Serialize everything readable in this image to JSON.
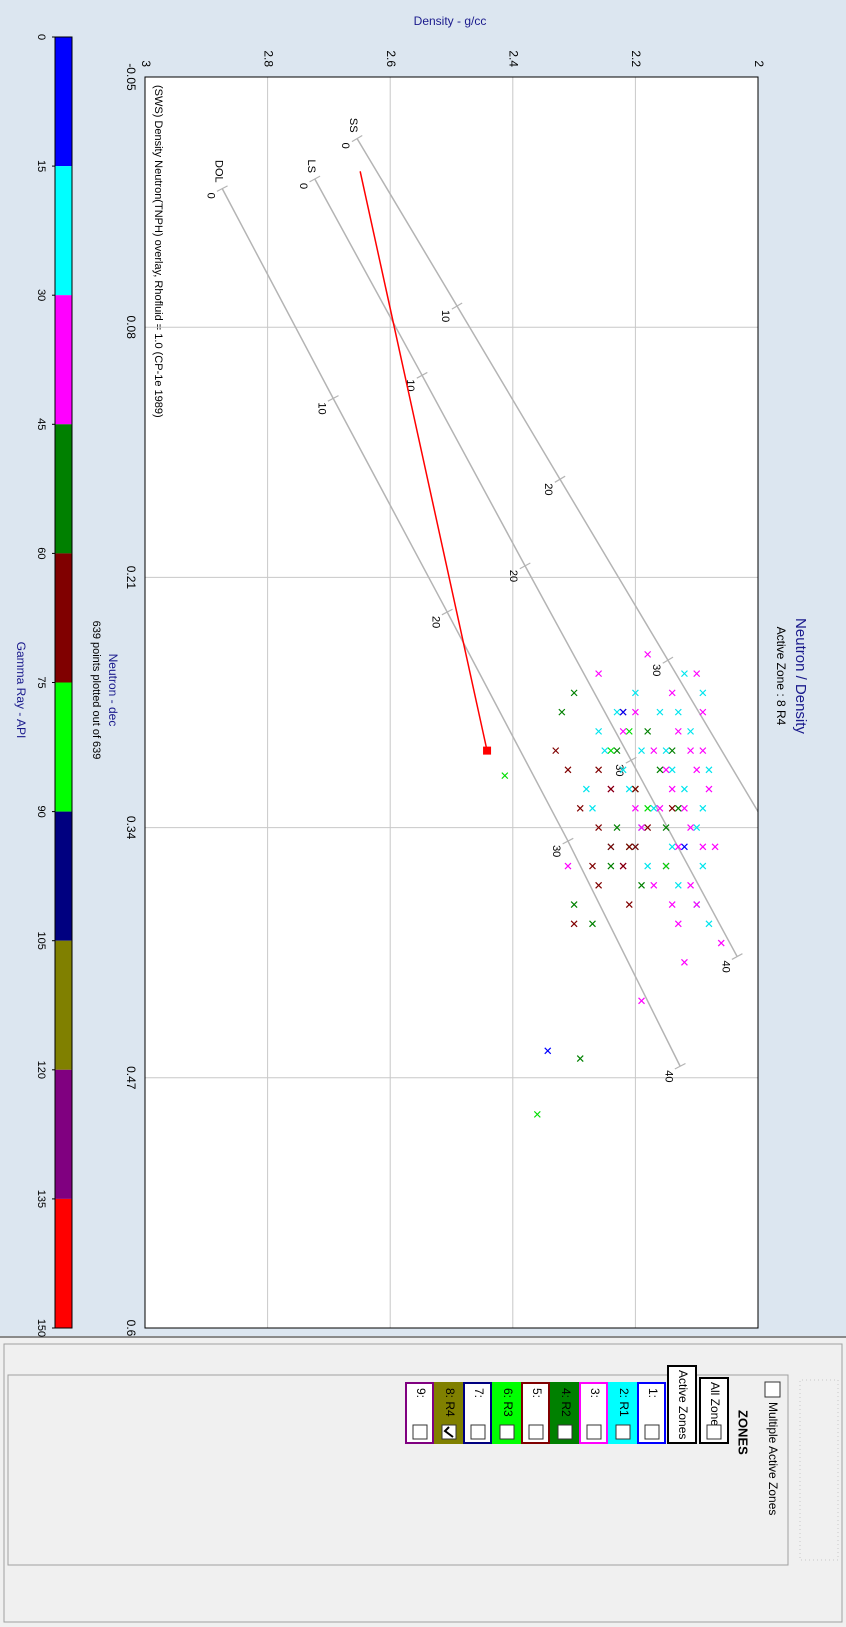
{
  "chart_data": {
    "type": "scatter",
    "title": "Neutron / Density",
    "subtitle": "Active Zone : 8  R4",
    "x_label": "Neutron - dec",
    "x_note": "639 points plotted out of 639",
    "y_label": "Density - g/cc",
    "xlim": [
      -0.05,
      0.6
    ],
    "xticks": [
      -0.05,
      0.08,
      0.21,
      0.34,
      0.47,
      0.6
    ],
    "ylim": [
      3,
      2
    ],
    "yticks": [
      2,
      2.2,
      2.4,
      2.6,
      2.8,
      3
    ],
    "grid": true,
    "marker": "x",
    "series": [
      {
        "color": "#00e5ee",
        "x": [
          0.26,
          0.27,
          0.28,
          0.28,
          0.29,
          0.3,
          0.3,
          0.31,
          0.31,
          0.32,
          0.32,
          0.33,
          0.33,
          0.34,
          0.34,
          0.35,
          0.35,
          0.36,
          0.36,
          0.37,
          0.38,
          0.27,
          0.29,
          0.31,
          0.33,
          0.3,
          0.32,
          0.35,
          0.39,
          0.28
        ],
        "values": [
          2.12,
          2.09,
          2.16,
          2.23,
          2.11,
          2.19,
          2.25,
          2.14,
          2.08,
          2.21,
          2.12,
          2.17,
          2.27,
          2.1,
          2.19,
          2.14,
          2.24,
          2.09,
          2.18,
          2.13,
          2.1,
          2.2,
          2.26,
          2.22,
          2.09,
          2.15,
          2.28,
          2.2,
          2.08,
          2.13
        ]
      },
      {
        "color": "#ff00ff",
        "x": [
          0.25,
          0.26,
          0.27,
          0.28,
          0.28,
          0.29,
          0.3,
          0.3,
          0.31,
          0.31,
          0.32,
          0.32,
          0.33,
          0.33,
          0.34,
          0.34,
          0.35,
          0.35,
          0.36,
          0.36,
          0.37,
          0.37,
          0.38,
          0.38,
          0.39,
          0.4,
          0.41,
          0.26,
          0.29,
          0.32,
          0.35,
          0.3,
          0.43,
          0.36,
          0.33
        ],
        "values": [
          2.18,
          2.1,
          2.14,
          2.2,
          2.09,
          2.13,
          2.11,
          2.17,
          2.15,
          2.1,
          2.08,
          2.14,
          2.12,
          2.16,
          2.11,
          2.19,
          2.13,
          2.09,
          2.15,
          2.22,
          2.11,
          2.17,
          2.1,
          2.14,
          2.13,
          2.06,
          2.12,
          2.26,
          2.22,
          2.24,
          2.07,
          2.09,
          2.19,
          2.31,
          2.2
        ]
      },
      {
        "color": "#008000",
        "x": [
          0.27,
          0.28,
          0.29,
          0.3,
          0.31,
          0.32,
          0.33,
          0.34,
          0.35,
          0.36,
          0.37,
          0.38,
          0.39,
          0.3,
          0.34,
          0.46
        ],
        "values": [
          2.3,
          2.32,
          2.18,
          2.23,
          2.16,
          2.2,
          2.13,
          2.15,
          2.21,
          2.24,
          2.19,
          2.3,
          2.27,
          2.14,
          2.23,
          2.29
        ]
      },
      {
        "color": "#800000",
        "x": [
          0.28,
          0.31,
          0.31,
          0.32,
          0.32,
          0.33,
          0.34,
          0.34,
          0.35,
          0.35,
          0.36,
          0.36,
          0.37,
          0.38,
          0.39,
          0.33,
          0.3,
          0.35
        ],
        "values": [
          2.22,
          2.31,
          2.26,
          2.24,
          2.2,
          2.29,
          2.26,
          2.18,
          2.21,
          2.24,
          2.22,
          2.27,
          2.26,
          2.21,
          2.3,
          2.14,
          2.33,
          2.2
        ]
      },
      {
        "color": "#00dd00",
        "x": [
          0.313,
          0.489,
          0.29,
          0.3,
          0.33,
          0.36
        ],
        "values": [
          2.413,
          2.36,
          2.21,
          2.24,
          2.18,
          2.15
        ]
      },
      {
        "color": "#0000ff",
        "x": [
          0.456,
          0.28,
          0.35
        ],
        "values": [
          2.343,
          2.22,
          2.12
        ]
      }
    ],
    "overlay": {
      "caption": "(SWS) Density Neutron(TNPH) overlay, Rhofluid = 1.0 (CP-1e 1989)",
      "caption_color": "#008000",
      "color": "#b4b4b4",
      "lines": [
        {
          "name": "SS",
          "porosity": [
            0,
            10,
            20,
            30,
            40
          ],
          "x": [
            -0.018,
            0.069,
            0.159,
            0.253,
            0.352
          ],
          "y": [
            2.654,
            2.491,
            2.323,
            2.147,
            1.962
          ]
        },
        {
          "name": "LS",
          "porosity": [
            0,
            10,
            20,
            30,
            40
          ],
          "x": [
            0.003,
            0.105,
            0.204,
            0.305,
            0.407
          ],
          "y": [
            2.723,
            2.548,
            2.38,
            2.207,
            2.034
          ]
        },
        {
          "name": "DOL",
          "porosity": [
            0,
            10,
            20,
            30,
            40
          ],
          "x": [
            0.008,
            0.117,
            0.228,
            0.347,
            0.464
          ],
          "y": [
            2.874,
            2.693,
            2.507,
            2.31,
            2.127
          ]
        }
      ]
    },
    "trend_line": {
      "color": "#ff0000",
      "x": [
        -0.001,
        0.3
      ],
      "y": [
        2.649,
        2.442
      ]
    },
    "color_scale": {
      "label": "Gamma Ray - API",
      "lim": [
        0,
        150
      ],
      "ticks": [
        0,
        15,
        30,
        45,
        60,
        75,
        90,
        105,
        120,
        135,
        150
      ],
      "colors": [
        "#0000ff",
        "#00ffff",
        "#ff00ff",
        "#008000",
        "#800000",
        "#00ff00",
        "#000080",
        "#808000",
        "#800080",
        "#ff0000"
      ]
    }
  },
  "zones_panel": {
    "multiple_label": "Multiple Active Zones",
    "title": "ZONES",
    "all_label": "All Zones",
    "active_label": "Active Zones",
    "zones": [
      {
        "label": "1:",
        "color": "#0000ff",
        "filled": false,
        "text_color": "#000000",
        "checked": false
      },
      {
        "label": "2: R1",
        "color": "#00ffff",
        "filled": true,
        "text_color": "#000000",
        "checked": false
      },
      {
        "label": "3:",
        "color": "#ff00ff",
        "filled": false,
        "text_color": "#000000",
        "checked": false
      },
      {
        "label": "4: R2",
        "color": "#008000",
        "filled": true,
        "text_color": "#ffffff",
        "checked": false
      },
      {
        "label": "5:",
        "color": "#800000",
        "filled": false,
        "text_color": "#000000",
        "checked": false
      },
      {
        "label": "6: R3",
        "color": "#00ff00",
        "filled": true,
        "text_color": "#000000",
        "checked": false
      },
      {
        "label": "7:",
        "color": "#000080",
        "filled": false,
        "text_color": "#000000",
        "checked": false
      },
      {
        "label": "8: R4",
        "color": "#808000",
        "filled": true,
        "text_color": "#ffffff",
        "checked": true
      },
      {
        "label": "9:",
        "color": "#800080",
        "filled": false,
        "text_color": "#000000",
        "checked": false
      }
    ]
  }
}
